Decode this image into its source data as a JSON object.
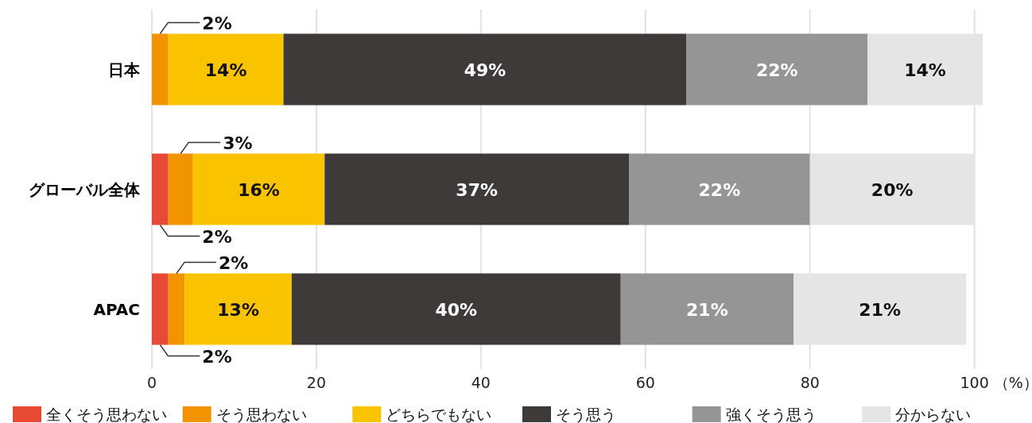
{
  "chart_data": {
    "type": "bar",
    "orientation": "horizontal",
    "stacked": true,
    "grid": "x",
    "legend": "bottom",
    "xlabel": "（%）",
    "categories": [
      "日本",
      "グローバル全体",
      "APAC"
    ],
    "xlim": [
      0,
      101
    ],
    "xticks": [
      0,
      20,
      40,
      60,
      80,
      100
    ],
    "series": [
      {
        "name": "全くそう思わない",
        "color": "#e94a35",
        "values": [
          null,
          2,
          2
        ],
        "value_labels": [
          null,
          "2%",
          "2%"
        ]
      },
      {
        "name": "そう思わない",
        "color": "#f29400",
        "values": [
          2,
          3,
          2
        ],
        "value_labels": [
          "2%",
          "3%",
          "2%"
        ]
      },
      {
        "name": "どちらでもない",
        "color": "#f9c300",
        "values": [
          14,
          16,
          13
        ],
        "value_labels": [
          "14%",
          "16%",
          "13%"
        ]
      },
      {
        "name": "そう思う",
        "color": "#3e3a39",
        "values": [
          49,
          37,
          40
        ],
        "value_labels": [
          "49%",
          "37%",
          "40%"
        ]
      },
      {
        "name": "強くそう思う",
        "color": "#959595",
        "values": [
          22,
          22,
          21
        ],
        "value_labels": [
          "22%",
          "22%",
          "21%"
        ]
      },
      {
        "name": "分からない",
        "color": "#e5e5e5",
        "values": [
          14,
          20,
          21
        ],
        "value_labels": [
          "14%",
          "20%",
          "21%"
        ]
      }
    ]
  }
}
